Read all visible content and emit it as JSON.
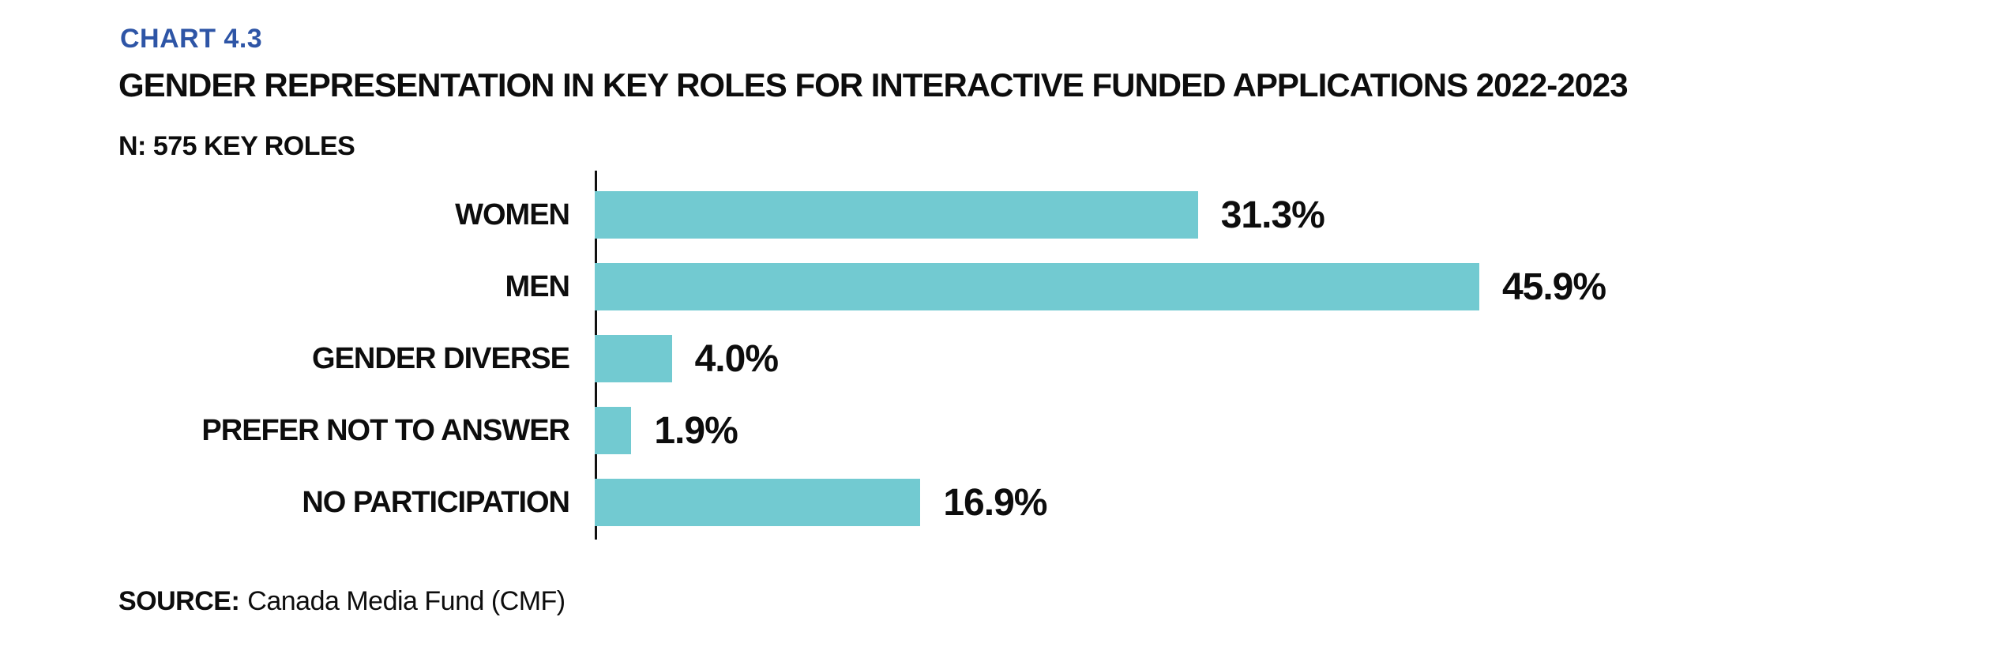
{
  "header": {
    "chart_label": "CHART 4.3",
    "chart_label_color": "#2E55A6",
    "title": "GENDER REPRESENTATION IN KEY ROLES FOR INTERACTIVE FUNDED APPLICATIONS 2022-2023",
    "n_label": "N: 575 KEY ROLES"
  },
  "chart_data": {
    "type": "bar",
    "orientation": "horizontal",
    "title": "GENDER REPRESENTATION IN KEY ROLES FOR INTERACTIVE FUNDED APPLICATIONS 2022-2023",
    "subtitle": "N: 575 KEY ROLES",
    "chart_number": "CHART 4.3",
    "categories": [
      "WOMEN",
      "MEN",
      "GENDER DIVERSE",
      "PREFER NOT TO ANSWER",
      "NO PARTICIPATION"
    ],
    "values": [
      31.3,
      45.9,
      4.0,
      1.9,
      16.9
    ],
    "value_labels": [
      "31.3%",
      "45.9%",
      "4.0%",
      "1.9%",
      "16.9%"
    ],
    "xlabel": "",
    "ylabel": "",
    "xlim": [
      0,
      50
    ],
    "grid": false,
    "legend": false,
    "value_label_position": "right-of-bar",
    "bar_color": "#72CAD1",
    "axis_color": "#111111",
    "text_color": "#0D0D0D"
  },
  "footer": {
    "source_label": "SOURCE:",
    "source_text": "Canada Media Fund (CMF)"
  }
}
